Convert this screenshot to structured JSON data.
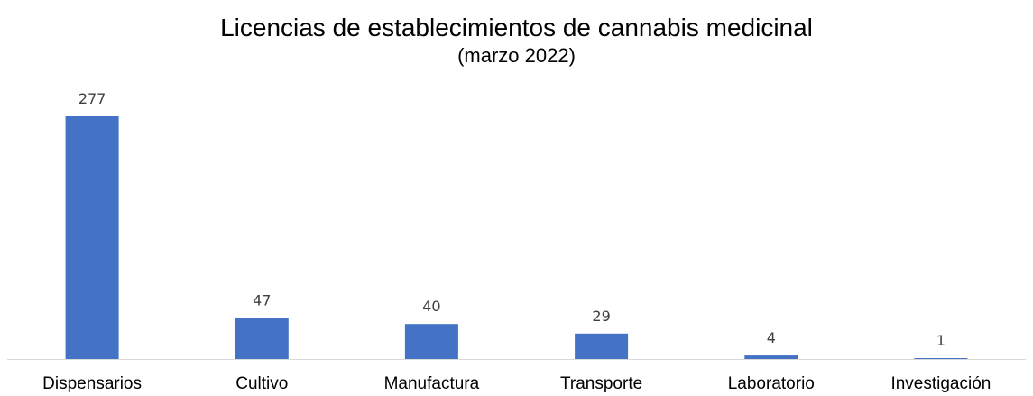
{
  "chart_data": {
    "type": "bar",
    "title": "Licencias de establecimientos de cannabis medicinal",
    "subtitle": "(marzo 2022)",
    "categories": [
      "Dispensarios",
      "Cultivo",
      "Manufactura",
      "Transporte",
      "Laboratorio",
      "Investigación"
    ],
    "values": [
      277,
      47,
      40,
      29,
      4,
      1
    ],
    "data_labels": [
      "277",
      "47",
      "40",
      "29",
      "4",
      "1"
    ],
    "xlabel": "",
    "ylabel": "",
    "ylim": [
      0,
      277
    ],
    "grid": false,
    "legend": "none",
    "bar_color": "#4472C4",
    "axis_color": "#D9D9D9"
  }
}
